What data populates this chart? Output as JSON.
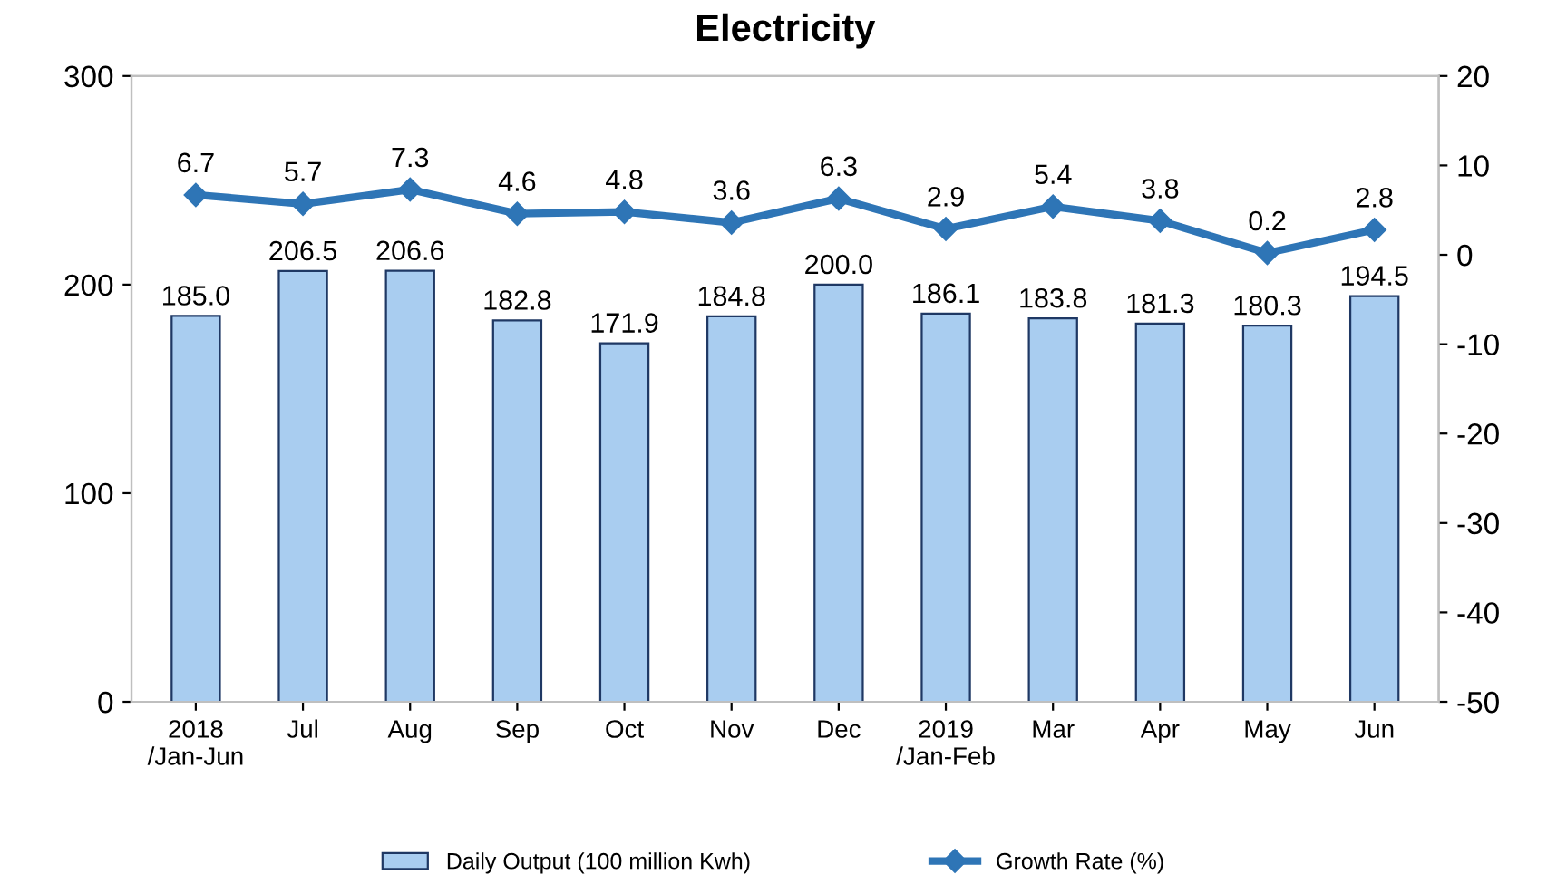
{
  "chart_data": {
    "type": "bar",
    "title": "Electricity",
    "categories": [
      "2018\n/Jan-Jun",
      "Jul",
      "Aug",
      "Sep",
      "Oct",
      "Nov",
      "Dec",
      "2019\n/Jan-Feb",
      "Mar",
      "Apr",
      "May",
      "Jun"
    ],
    "series": [
      {
        "name": "Daily Output (100 million Kwh)",
        "color": "#a9cdf0",
        "values": [
          185.0,
          206.5,
          206.6,
          182.8,
          171.9,
          184.8,
          200.0,
          186.1,
          183.8,
          181.3,
          180.3,
          194.5
        ],
        "value_labels": [
          "185.0",
          "206.5",
          "206.6",
          "182.8",
          "171.9",
          "184.8",
          "200.0",
          "186.1",
          "183.8",
          "181.3",
          "180.3",
          "194.5"
        ]
      },
      {
        "name": "Growth Rate (%)",
        "type": "line",
        "axis": "y2",
        "color": "#2e75b6",
        "marker": "diamond",
        "values": [
          6.7,
          5.7,
          7.3,
          4.6,
          4.8,
          3.6,
          6.3,
          2.9,
          5.4,
          3.8,
          0.2,
          2.8
        ]
      }
    ],
    "ylim": [
      0,
      300
    ],
    "yticks": [
      0,
      100,
      200,
      300
    ],
    "y2lim": [
      -50,
      20
    ],
    "y2ticks": [
      -50,
      -40,
      -30,
      -20,
      -10,
      0,
      10,
      20
    ],
    "data_labels": true,
    "grid": false,
    "legend": "bottom"
  }
}
